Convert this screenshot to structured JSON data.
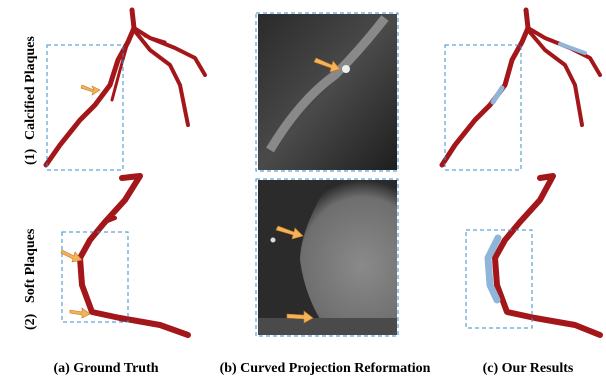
{
  "rows": [
    {
      "number": "(1)",
      "label": "Calcified Plaques"
    },
    {
      "number": "(2)",
      "label": "Soft Plaques"
    }
  ],
  "columns": [
    "(a) Ground Truth",
    "(b) Curved Projection Reformation",
    "(c) Our Results"
  ]
}
